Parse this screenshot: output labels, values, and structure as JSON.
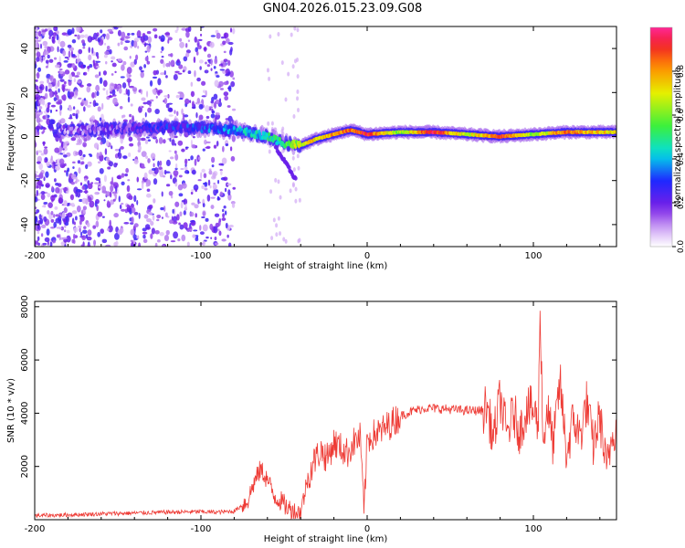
{
  "title": "GN04.2026.015.23.09.G08",
  "colors": {
    "series_line": "#ee3b35",
    "axis": "#000000",
    "scatter_purple": "#7a22e6"
  },
  "chart_data": [
    {
      "type": "heatmap",
      "xlabel": "Height of straight line (km)",
      "ylabel": "Frequency (Hz)",
      "xlim": [
        -200,
        150
      ],
      "ylim": [
        -50,
        50
      ],
      "x_ticks": [
        -200,
        -100,
        0,
        100
      ],
      "y_ticks": [
        -40,
        -20,
        0,
        20,
        40
      ],
      "colorbar": {
        "label": "Normalized spectral amplitude",
        "ticks": [
          0.0,
          0.2,
          0.4,
          0.6,
          0.8
        ],
        "tick_labels": [
          "0.0",
          "0.2",
          "0.4",
          "0.6",
          "0.8"
        ],
        "range": [
          0,
          1
        ]
      },
      "ridge": {
        "x": [
          -180,
          -160,
          -140,
          -120,
          -100,
          -80,
          -60,
          -50,
          -40,
          -30,
          -20,
          -10,
          0,
          20,
          40,
          60,
          80,
          100,
          120,
          150
        ],
        "freq": [
          3,
          3,
          4,
          4,
          4,
          3,
          0,
          -3,
          -4,
          -1,
          1,
          3,
          1,
          2,
          2,
          1,
          0,
          1,
          2,
          2
        ],
        "amplitude": [
          0.12,
          0.15,
          0.2,
          0.25,
          0.3,
          0.35,
          0.45,
          0.5,
          0.7,
          0.75,
          0.8,
          0.85,
          0.9,
          0.6,
          0.95,
          0.65,
          0.9,
          0.6,
          0.85,
          0.7
        ]
      }
    },
    {
      "type": "line",
      "xlabel": "Height of straight line (km)",
      "ylabel": "SNR (10 * v/v)",
      "xlim": [
        -200,
        150
      ],
      "ylim": [
        0,
        8200
      ],
      "x_ticks": [
        -200,
        -100,
        0,
        100
      ],
      "y_ticks": [
        2000,
        4000,
        6000,
        8000
      ],
      "series": [
        {
          "name": "SNR",
          "x": [
            -200,
            -180,
            -160,
            -140,
            -120,
            -100,
            -90,
            -80,
            -72,
            -68,
            -64,
            -60,
            -56,
            -52,
            -48,
            -44,
            -40,
            -36,
            -32,
            -28,
            -24,
            -20,
            -16,
            -12,
            -8,
            -4,
            -2,
            0,
            4,
            8,
            12,
            16,
            20,
            24,
            28,
            32,
            36,
            40,
            50,
            60,
            70,
            72,
            76,
            80,
            84,
            88,
            92,
            96,
            100,
            103,
            104,
            106,
            108,
            112,
            116,
            120,
            124,
            128,
            132,
            136,
            140,
            144,
            148,
            150
          ],
          "values": [
            150,
            180,
            220,
            250,
            280,
            300,
            280,
            320,
            700,
            1400,
            1900,
            1500,
            900,
            700,
            450,
            300,
            250,
            1500,
            2200,
            2600,
            2300,
            2900,
            2700,
            2500,
            2900,
            3100,
            200,
            3000,
            3200,
            3300,
            3500,
            3700,
            3900,
            4000,
            4100,
            4150,
            4200,
            4180,
            4150,
            4100,
            4100,
            4300,
            3000,
            4600,
            3200,
            4000,
            3300,
            4200,
            4100,
            3600,
            8150,
            2600,
            4300,
            2800,
            5200,
            2400,
            3800,
            3100,
            4400,
            2800,
            3900,
            1800,
            3500,
            3300
          ]
        }
      ]
    }
  ]
}
